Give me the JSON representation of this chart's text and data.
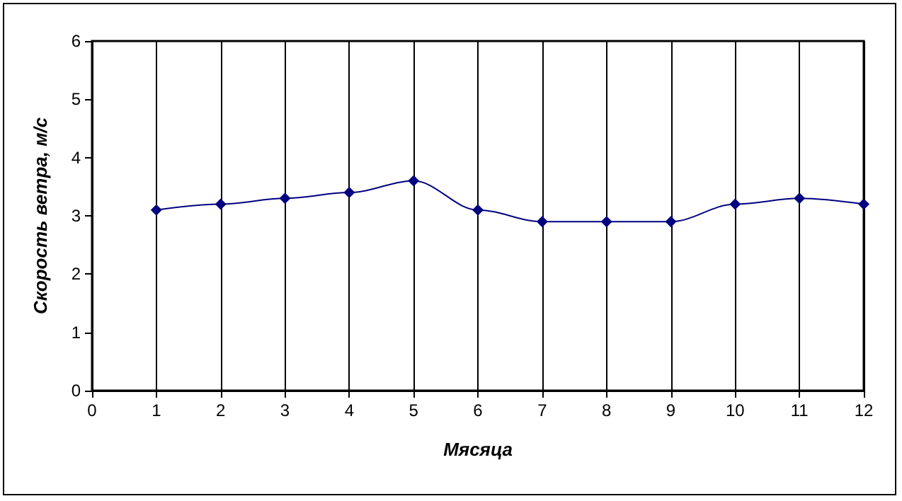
{
  "chart_data": {
    "type": "line",
    "xlabel": "Мясяца",
    "ylabel": "Скорость ветра, м/с",
    "x": [
      1,
      2,
      3,
      4,
      5,
      6,
      7,
      8,
      9,
      10,
      11,
      12
    ],
    "series": [
      {
        "color": "#000080",
        "values": [
          3.1,
          3.2,
          3.3,
          3.4,
          3.6,
          3.1,
          2.9,
          2.9,
          2.9,
          3.2,
          3.3,
          3.2
        ]
      }
    ],
    "xlim": [
      0,
      12
    ],
    "xticks": [
      0,
      1,
      2,
      3,
      4,
      5,
      6,
      7,
      8,
      9,
      10,
      11,
      12
    ],
    "ylim": [
      0,
      6
    ],
    "yticks": [
      0,
      1,
      2,
      3,
      4,
      5,
      6
    ],
    "grid": "x",
    "marker": "diamond",
    "line_style": "solid"
  }
}
